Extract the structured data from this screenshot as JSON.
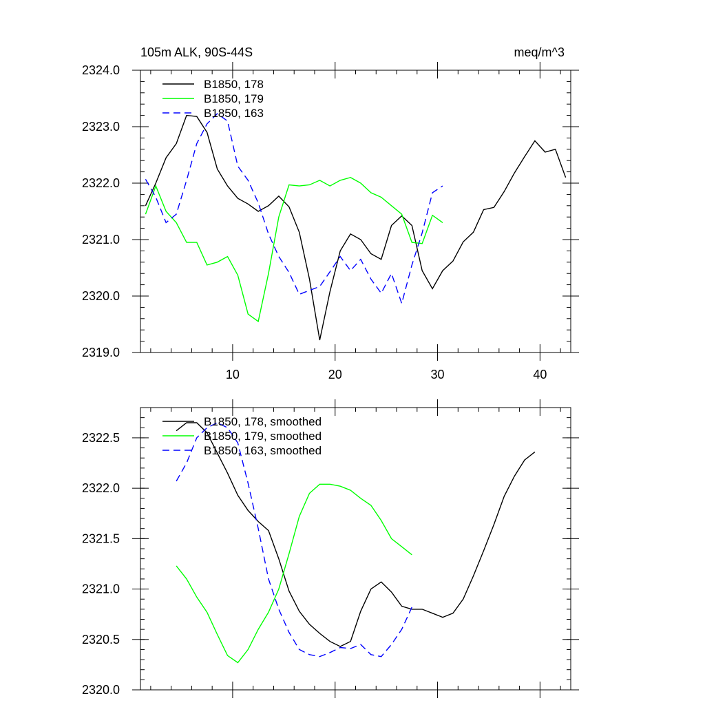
{
  "chart_data": [
    {
      "type": "line",
      "title_left": "105m ALK, 90S-44S",
      "title_right": "meq/m^3",
      "xlabel": "",
      "ylabel": "",
      "xlim": [
        1,
        43
      ],
      "ylim": [
        2319.0,
        2324.0
      ],
      "xticks": [
        10,
        20,
        30,
        40
      ],
      "yticks": [
        2319.0,
        2320.0,
        2321.0,
        2322.0,
        2323.0,
        2324.0
      ],
      "ytick_labels": [
        "2319.0",
        "2320.0",
        "2321.0",
        "2322.0",
        "2323.0",
        "2324.0"
      ],
      "xtick_labels": [
        "10",
        "20",
        "30",
        "40"
      ],
      "legend_position": "top-left",
      "series": [
        {
          "name": "B1850, 178",
          "color": "#000000",
          "dash": "solid",
          "x": [
            1.5,
            2.5,
            3.5,
            4.5,
            5.5,
            6.5,
            7.5,
            8.5,
            9.5,
            10.5,
            11.5,
            12.5,
            13.5,
            14.5,
            15.5,
            16.5,
            17.5,
            18.5,
            19.5,
            20.5,
            21.5,
            22.5,
            23.5,
            24.5,
            25.5,
            26.5,
            27.5,
            28.5,
            29.5,
            30.5,
            31.5,
            32.5,
            33.5,
            34.5,
            35.5,
            36.5,
            37.5,
            38.5,
            39.5,
            40.5,
            41.5,
            42.5
          ],
          "y": [
            2321.6,
            2322.0,
            2322.45,
            2322.7,
            2323.2,
            2323.18,
            2322.9,
            2322.25,
            2321.95,
            2321.73,
            2321.63,
            2321.5,
            2321.6,
            2321.77,
            2321.58,
            2321.13,
            2320.3,
            2319.22,
            2320.08,
            2320.8,
            2321.1,
            2321.0,
            2320.75,
            2320.65,
            2321.25,
            2321.42,
            2321.25,
            2320.45,
            2320.13,
            2320.45,
            2320.62,
            2320.96,
            2321.13,
            2321.53,
            2321.57,
            2321.85,
            2322.18,
            2322.47,
            2322.75,
            2322.55,
            2322.6,
            2322.1
          ]
        },
        {
          "name": "B1850, 179",
          "color": "#00ff00",
          "dash": "solid",
          "x": [
            1.5,
            2.5,
            3.5,
            4.5,
            5.5,
            6.5,
            7.5,
            8.5,
            9.5,
            10.5,
            11.5,
            12.5,
            13.5,
            14.5,
            15.5,
            16.5,
            17.5,
            18.5,
            19.5,
            20.5,
            21.5,
            22.5,
            23.5,
            24.5,
            25.5,
            26.5,
            27.5,
            28.5,
            29.5,
            30.5
          ],
          "y": [
            2321.45,
            2321.95,
            2321.5,
            2321.3,
            2320.95,
            2320.95,
            2320.55,
            2320.6,
            2320.7,
            2320.37,
            2319.68,
            2319.55,
            2320.4,
            2321.4,
            2321.97,
            2321.95,
            2321.97,
            2322.05,
            2321.95,
            2322.05,
            2322.1,
            2322.0,
            2321.83,
            2321.75,
            2321.6,
            2321.45,
            2320.95,
            2320.93,
            2321.43,
            2321.3
          ]
        },
        {
          "name": "B1850, 163",
          "color": "#0000ff",
          "dash": "dashed",
          "x": [
            1.5,
            2.5,
            3.5,
            4.5,
            5.5,
            6.5,
            7.5,
            8.5,
            9.5,
            10.5,
            11.5,
            12.5,
            13.5,
            14.5,
            15.5,
            16.5,
            17.5,
            18.5,
            19.5,
            20.5,
            21.5,
            22.5,
            23.5,
            24.5,
            25.5,
            26.5,
            27.5,
            28.5,
            29.5,
            30.5
          ],
          "y": [
            2322.07,
            2321.75,
            2321.3,
            2321.45,
            2322.05,
            2322.7,
            2323.05,
            2323.23,
            2323.1,
            2322.3,
            2322.05,
            2321.65,
            2321.1,
            2320.7,
            2320.42,
            2320.03,
            2320.1,
            2320.17,
            2320.43,
            2320.7,
            2320.45,
            2320.65,
            2320.3,
            2320.05,
            2320.4,
            2319.87,
            2320.55,
            2321.12,
            2321.83,
            2321.95
          ]
        }
      ]
    },
    {
      "type": "line",
      "xlabel": "",
      "ylabel": "",
      "xlim": [
        1,
        43
      ],
      "ylim": [
        2320.0,
        2322.8
      ],
      "xticks": [
        10,
        20,
        30,
        40
      ],
      "yticks": [
        2320.0,
        2320.5,
        2321.0,
        2321.5,
        2322.0,
        2322.5
      ],
      "ytick_labels": [
        "2320.0",
        "2320.5",
        "2321.0",
        "2321.5",
        "2322.0",
        "2322.5"
      ],
      "legend_position": "top-left",
      "series": [
        {
          "name": "B1850, 178, smoothed",
          "color": "#000000",
          "dash": "solid",
          "x": [
            4.5,
            5.5,
            6.5,
            7.5,
            8.5,
            9.5,
            10.5,
            11.5,
            12.5,
            13.5,
            14.5,
            15.5,
            16.5,
            17.5,
            18.5,
            19.5,
            20.5,
            21.5,
            22.5,
            23.5,
            24.5,
            25.5,
            26.5,
            27.5,
            28.5,
            29.5,
            30.5,
            31.5,
            32.5,
            33.5,
            34.5,
            35.5,
            36.5,
            37.5,
            38.5,
            39.5
          ],
          "y": [
            2322.57,
            2322.65,
            2322.65,
            2322.55,
            2322.35,
            2322.15,
            2321.93,
            2321.78,
            2321.67,
            2321.58,
            2321.3,
            2320.98,
            2320.78,
            2320.65,
            2320.56,
            2320.48,
            2320.43,
            2320.48,
            2320.78,
            2321.0,
            2321.07,
            2320.97,
            2320.83,
            2320.8,
            2320.8,
            2320.76,
            2320.72,
            2320.76,
            2320.9,
            2321.13,
            2321.38,
            2321.64,
            2321.92,
            2322.12,
            2322.28,
            2322.36
          ]
        },
        {
          "name": "B1850, 179, smoothed",
          "color": "#00ff00",
          "dash": "solid",
          "x": [
            4.5,
            5.5,
            6.5,
            7.5,
            8.5,
            9.5,
            10.5,
            11.5,
            12.5,
            13.5,
            14.5,
            15.5,
            16.5,
            17.5,
            18.5,
            19.5,
            20.5,
            21.5,
            22.5,
            23.5,
            24.5,
            25.5,
            26.5,
            27.5
          ],
          "y": [
            2321.23,
            2321.1,
            2320.92,
            2320.77,
            2320.55,
            2320.34,
            2320.27,
            2320.4,
            2320.6,
            2320.77,
            2321.0,
            2321.35,
            2321.72,
            2321.95,
            2322.04,
            2322.04,
            2322.02,
            2321.98,
            2321.9,
            2321.83,
            2321.68,
            2321.5,
            2321.42,
            2321.34
          ]
        },
        {
          "name": "B1850, 163, smoothed",
          "color": "#0000ff",
          "dash": "dashed",
          "x": [
            4.5,
            5.5,
            6.5,
            7.5,
            8.5,
            9.5,
            10.5,
            11.5,
            12.5,
            13.5,
            14.5,
            15.5,
            16.5,
            17.5,
            18.5,
            19.5,
            20.5,
            21.5,
            22.5,
            23.5,
            24.5,
            25.5,
            26.5,
            27.5
          ],
          "y": [
            2322.07,
            2322.25,
            2322.5,
            2322.6,
            2322.65,
            2322.6,
            2322.45,
            2322.05,
            2321.6,
            2321.1,
            2320.8,
            2320.57,
            2320.4,
            2320.35,
            2320.33,
            2320.37,
            2320.42,
            2320.41,
            2320.45,
            2320.35,
            2320.33,
            2320.45,
            2320.6,
            2320.82
          ]
        }
      ]
    }
  ]
}
